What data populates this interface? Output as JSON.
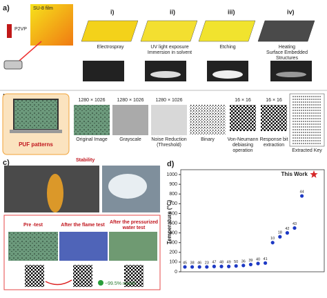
{
  "panel_a": {
    "label": "a)",
    "film": "SU-8 film",
    "vial": "P2VP",
    "steps": [
      {
        "num": "i)",
        "text": [
          "Electrospray"
        ]
      },
      {
        "num": "ii)",
        "text": [
          "UV light exposure",
          "Immersion in solvent"
        ]
      },
      {
        "num": "iii)",
        "text": [
          "Etching"
        ]
      },
      {
        "num": "iv)",
        "text": [
          "Heating",
          "Surface Embedded",
          "Structures"
        ]
      }
    ]
  },
  "panel_b": {
    "label": "b)",
    "puf": "PUF patterns",
    "images": [
      {
        "size": "1280 × 1026",
        "caption": [
          "Original Image"
        ]
      },
      {
        "size": "1280 × 1026",
        "caption": [
          "Grayscale"
        ]
      },
      {
        "size": "1280 × 1026",
        "caption": [
          "Noise Reduction",
          "(Threshold)"
        ]
      },
      {
        "size": "",
        "caption": [
          "Binary"
        ]
      },
      {
        "size": "16 × 16",
        "caption": [
          "Von-Neumann",
          "debiasing",
          "operation"
        ]
      },
      {
        "size": "16 × 16",
        "caption": [
          "Response bit",
          "extraction"
        ]
      },
      {
        "size": "",
        "caption": [
          "Extracted Key"
        ]
      }
    ]
  },
  "panel_c": {
    "label": "c)",
    "stability": "Stability",
    "tests": [
      "Pre -test",
      "After the flame test",
      "After the pressurized",
      "water test"
    ],
    "match": "~99.5% match"
  },
  "chart_data": {
    "type": "scatter",
    "label": "d)",
    "y_label": "Temperature (°C)",
    "categories": [
      "45",
      "38",
      "46",
      "23",
      "47",
      "48",
      "49",
      "50",
      "36",
      "39",
      "40",
      "41",
      "10",
      "18",
      "42",
      "43",
      "44"
    ],
    "values": [
      50,
      50,
      50,
      50,
      55,
      55,
      55,
      60,
      65,
      75,
      85,
      90,
      300,
      360,
      400,
      450,
      780
    ],
    "color": "#1d39c4",
    "this_work": {
      "label": "This Work",
      "value": 1000,
      "color": "#d62728"
    },
    "ylim": [
      0,
      1050
    ],
    "yticks": [
      0,
      100,
      200,
      300,
      400,
      500,
      600,
      700,
      800,
      900,
      1000
    ]
  }
}
